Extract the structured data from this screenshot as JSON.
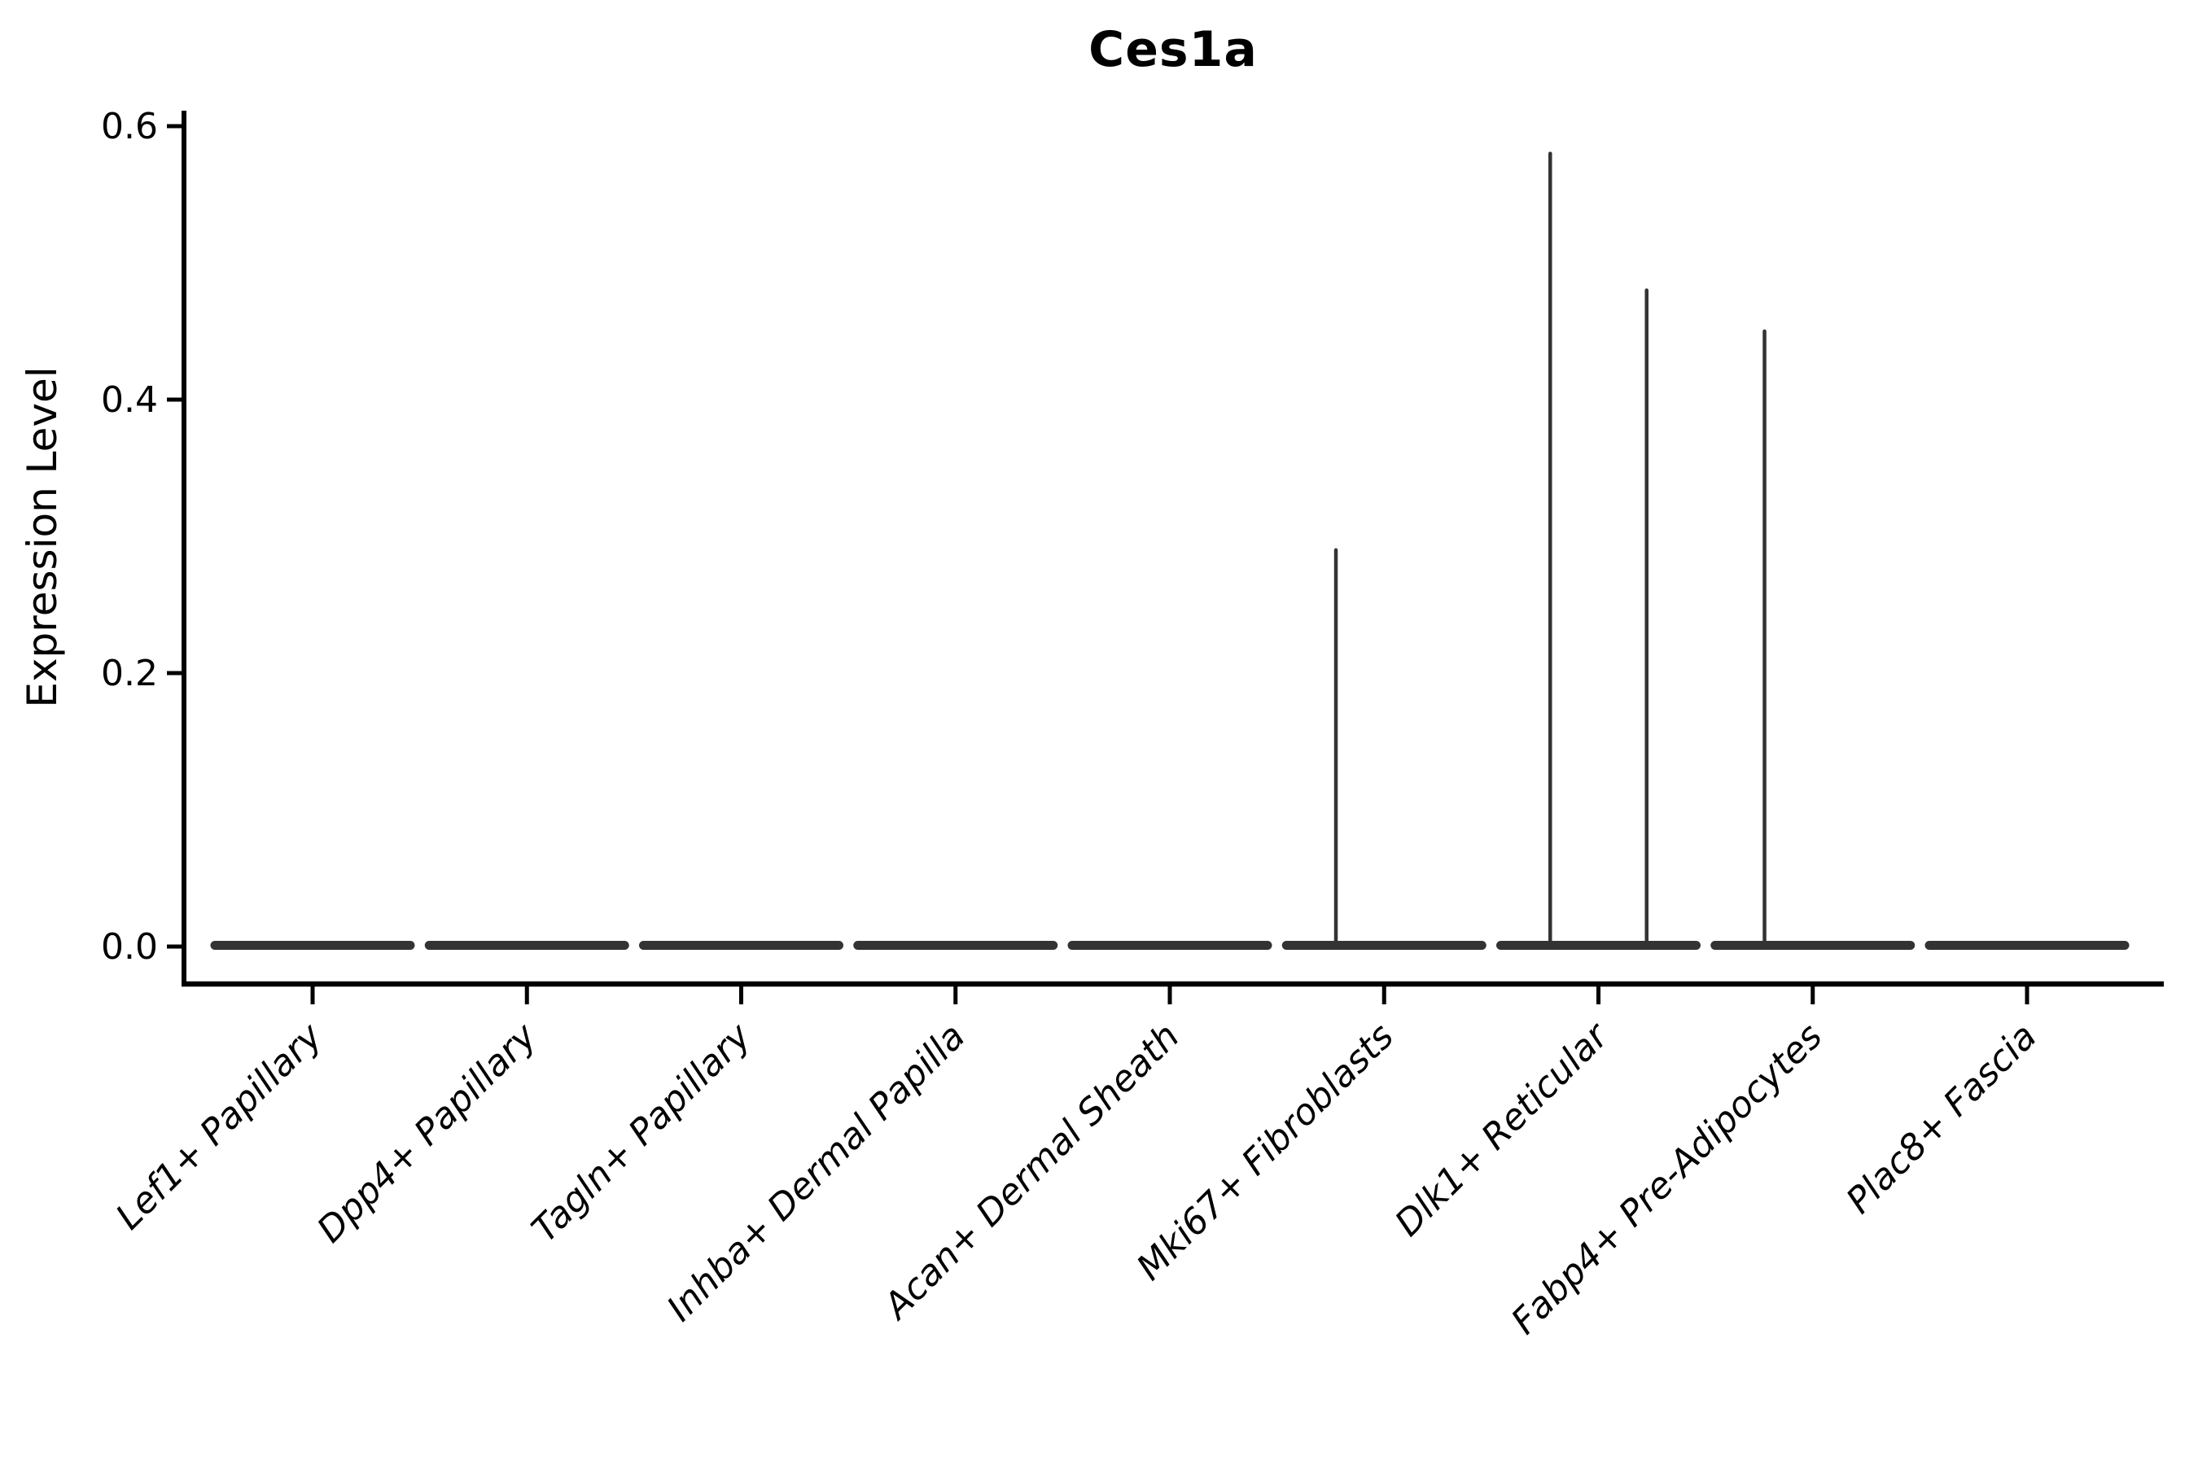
{
  "figure": {
    "title": "Ces1a"
  },
  "chart_data": {
    "type": "violin",
    "title": "Ces1a",
    "xlabel": "",
    "ylabel": "Expression Level",
    "ylim": [
      0,
      0.6
    ],
    "yticks": [
      "0.0",
      "0.2",
      "0.4",
      "0.6"
    ],
    "ytick_values": [
      0.0,
      0.2,
      0.4,
      0.6
    ],
    "grid": false,
    "legend_position": "none",
    "categories": [
      "Lef1+ Papillary",
      "Dpp4+ Papillary",
      "Tagln+ Papillary",
      "Inhba+ Dermal Papilla",
      "Acan+ Dermal Sheath",
      "Mki67+ Fibroblasts",
      "Dlk1+ Reticular",
      "Fabp4+ Pre-Adipocytes",
      "Plac8+ Fascia"
    ],
    "violins": [
      {
        "label": "Lef1+ Papillary",
        "baseline_value": 0.0,
        "spike_max": [
          0.0,
          0.0
        ]
      },
      {
        "label": "Dpp4+ Papillary",
        "baseline_value": 0.0,
        "spike_max": [
          0.0,
          0.0
        ]
      },
      {
        "label": "Tagln+ Papillary",
        "baseline_value": 0.0,
        "spike_max": [
          0.0,
          0.0
        ]
      },
      {
        "label": "Inhba+ Dermal Papilla",
        "baseline_value": 0.0,
        "spike_max": [
          0.0,
          0.0
        ]
      },
      {
        "label": "Acan+ Dermal Sheath",
        "baseline_value": 0.0,
        "spike_max": [
          0.0,
          0.0
        ]
      },
      {
        "label": "Mki67+ Fibroblasts",
        "baseline_value": 0.0,
        "spike_max": [
          0.29,
          0.0
        ]
      },
      {
        "label": "Dlk1+ Reticular",
        "baseline_value": 0.0,
        "spike_max": [
          0.58,
          0.48
        ]
      },
      {
        "label": "Fabp4+ Pre-Adipocytes",
        "baseline_value": 0.0,
        "spike_max": [
          0.45,
          0.0
        ]
      },
      {
        "label": "Plac8+ Fascia",
        "baseline_value": 0.0,
        "spike_max": [
          0.0,
          0.0
        ]
      }
    ],
    "subgroup_offset_fraction": 0.225,
    "colors": {
      "violin": "#333333",
      "axis": "#000000",
      "text": "#000000"
    }
  }
}
